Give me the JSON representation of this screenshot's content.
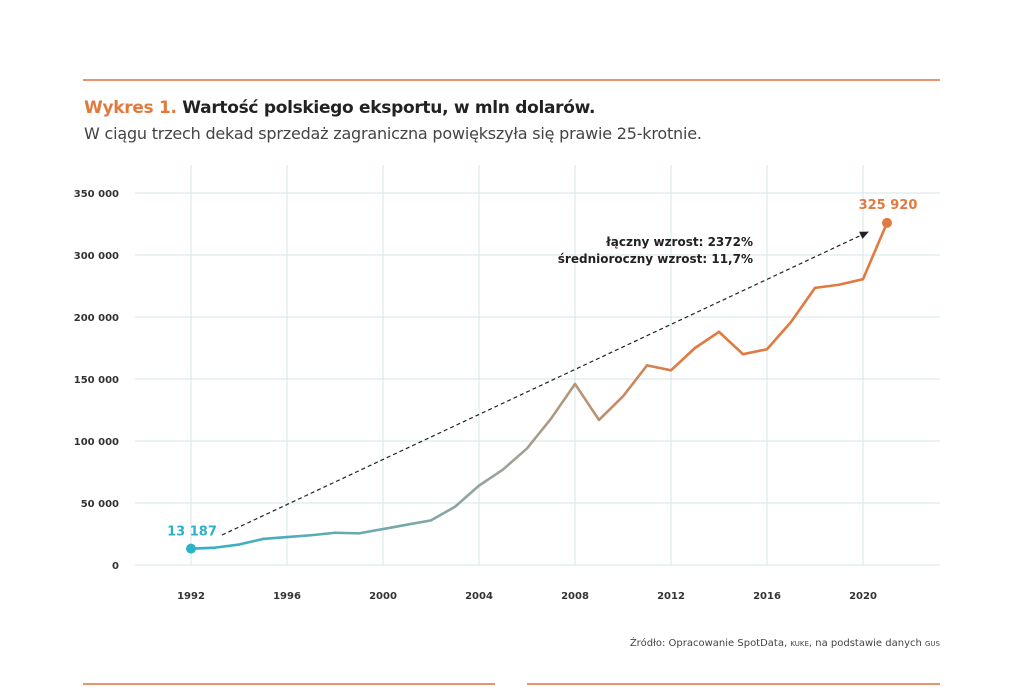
{
  "header": {
    "title_lead": "Wykres 1.",
    "title_rest": " Wartość polskiego eksportu, w mln dolarów.",
    "subtitle": "W ciągu trzech dekad sprzedaż zagraniczna powiększyła się prawie 25-krotnie."
  },
  "source": {
    "prefix": "Źródło: Opracowanie SpotData, ",
    "kuke": "kuke",
    "middle": ", na podstawie danych ",
    "gus": "gus"
  },
  "colors": {
    "accent": "#e27a3f",
    "start": "#2eb0c8",
    "middle": "#9ca49a",
    "end": "#e07a40",
    "grid": "#d6e4ea"
  },
  "chart_data": {
    "type": "line",
    "title": "Wartość polskiego eksportu, w mln dolarów.",
    "xlabel": "",
    "ylabel": "",
    "x_ticks": [
      1992,
      1996,
      2000,
      2004,
      2008,
      2012,
      2016,
      2020
    ],
    "y_ticks": [
      {
        "value": 0,
        "label": "0"
      },
      {
        "value": 50000,
        "label": "50 000"
      },
      {
        "value": 100000,
        "label": "100 000"
      },
      {
        "value": 150000,
        "label": "150 000"
      },
      {
        "value": 200000,
        "label": "200 000"
      },
      {
        "value": 300000,
        "label": "300 000"
      },
      {
        "value": 350000,
        "label": "350 000"
      }
    ],
    "ylim": [
      0,
      350000
    ],
    "grid": true,
    "x": [
      1992,
      1993,
      1994,
      1995,
      1996,
      1997,
      1998,
      1999,
      2000,
      2001,
      2002,
      2003,
      2004,
      2005,
      2006,
      2007,
      2008,
      2009,
      2010,
      2011,
      2012,
      2013,
      2014,
      2015,
      2016,
      2017,
      2018,
      2019,
      2020,
      2021
    ],
    "values": [
      13187,
      14000,
      16500,
      21000,
      22500,
      24000,
      26000,
      25500,
      29000,
      32500,
      36000,
      47000,
      64000,
      77000,
      94000,
      118000,
      146000,
      117000,
      136000,
      161000,
      157000,
      175000,
      188000,
      170000,
      174000,
      196000,
      247000,
      252000,
      261000,
      325920
    ],
    "annotations": {
      "start_label": "13 187",
      "end_label": "325 920",
      "total_growth": "łączny wzrost: 2372%",
      "avg_growth": "średnioroczny wzrost: 11,7%"
    }
  }
}
